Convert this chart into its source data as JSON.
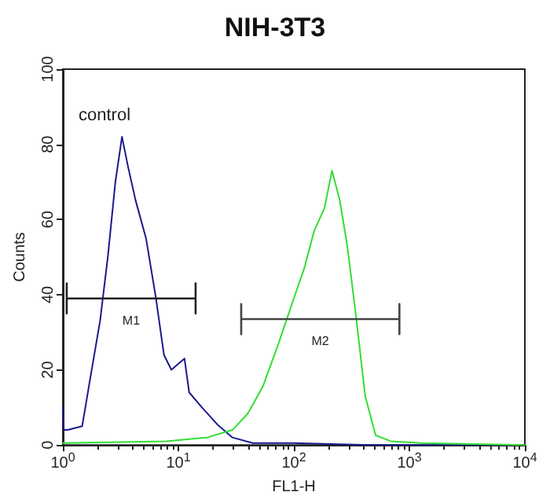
{
  "chart_data": {
    "type": "line",
    "title": "NIH-3T3",
    "xlabel": "FL1-H",
    "ylabel": "Counts",
    "log": "x",
    "grid": false,
    "xlim": [
      1,
      10000
    ],
    "ylim": [
      0,
      100
    ],
    "xticks": [
      {
        "value": 1,
        "label": "10$^{0}$"
      },
      {
        "value": 10,
        "label": "10$^{1}$"
      },
      {
        "value": 100,
        "label": "10$^{2}$"
      },
      {
        "value": 1000,
        "label": "10$^{3}$"
      },
      {
        "value": 10000,
        "label": "10$^{4}$"
      }
    ],
    "yticks": [
      0,
      20,
      40,
      60,
      80,
      100
    ],
    "annotations": [
      "control"
    ],
    "series": [
      {
        "color": "#1a1a8c",
        "x": [
          1,
          1.02,
          1.1,
          1.47,
          1.71,
          2.1,
          2.45,
          2.85,
          3.25,
          3.67,
          4.27,
          5.25,
          6.4,
          7.5,
          8.7,
          11.3,
          12.4,
          16,
          21.7,
          29.4,
          44,
          100,
          460,
          10000
        ],
        "values": [
          10,
          4,
          4,
          5,
          17,
          33,
          50,
          70,
          82,
          74,
          65,
          55,
          39,
          24,
          20,
          23,
          14,
          10,
          5.5,
          2,
          0.5,
          0.5,
          0,
          0
        ]
      },
      {
        "color": "#33dd33",
        "x": [
          1,
          7.9,
          17.8,
          29.4,
          40,
          54,
          73.6,
          95,
          123,
          150,
          184,
          214,
          250,
          290,
          340,
          415,
          510,
          690,
          1270,
          10000
        ],
        "values": [
          0.5,
          1,
          2,
          4,
          8.4,
          15.6,
          27,
          37,
          47,
          57,
          63,
          73,
          65,
          53,
          36,
          13,
          2.6,
          1,
          0.5,
          0
        ]
      },
      {
        "name": "M1",
        "color": "#222222",
        "x": [
          1.08,
          1.08,
          1.08,
          14.1,
          14.1,
          14.1
        ],
        "values": [
          43,
          35,
          39,
          39,
          43,
          35
        ]
      },
      {
        "name": "M2",
        "color": "#444444",
        "x": [
          35,
          35,
          35,
          820,
          820,
          820
        ],
        "values": [
          37.5,
          29.5,
          33.5,
          33.5,
          37.5,
          29.5
        ]
      }
    ]
  }
}
